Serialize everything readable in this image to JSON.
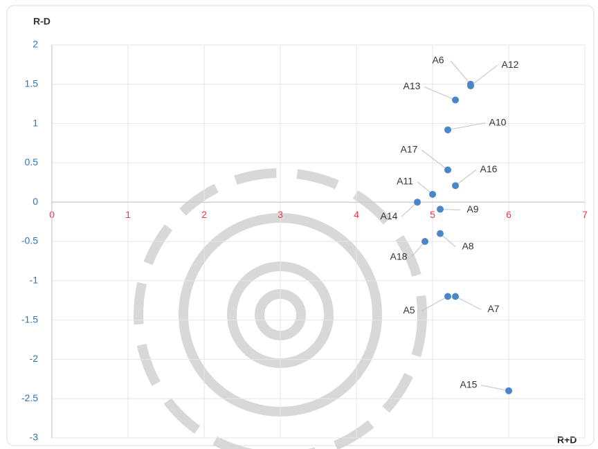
{
  "chart_data": {
    "type": "scatter",
    "y_label": "R-D",
    "x_label": "R+D",
    "labels": [
      "A6",
      "A12",
      "A13",
      "A10",
      "A17",
      "A16",
      "A11",
      "A14",
      "A9",
      "A8",
      "A18",
      "A5",
      "A7",
      "A15"
    ],
    "x": [
      5.5,
      5.5,
      5.3,
      5.2,
      5.2,
      5.3,
      5.0,
      4.8,
      5.1,
      5.1,
      4.9,
      5.2,
      5.3,
      6.0
    ],
    "values": [
      1.5,
      1.48,
      1.3,
      0.92,
      0.41,
      0.21,
      0.1,
      0.0,
      -0.09,
      -0.4,
      -0.5,
      -1.2,
      -1.2,
      -2.4
    ],
    "color": "#4a86c8",
    "xlim": [
      0,
      7
    ],
    "xticks": [
      0,
      1,
      2,
      3,
      4,
      5,
      6,
      7
    ],
    "xtick_color": "#f0384f",
    "ylim": [
      -3,
      2
    ],
    "yticks": [
      2,
      1.5,
      1,
      0.5,
      0,
      -0.5,
      -1,
      -1.5,
      -2,
      -2.5,
      -3
    ],
    "ytick_color": "#2e75b6",
    "grid": true
  }
}
